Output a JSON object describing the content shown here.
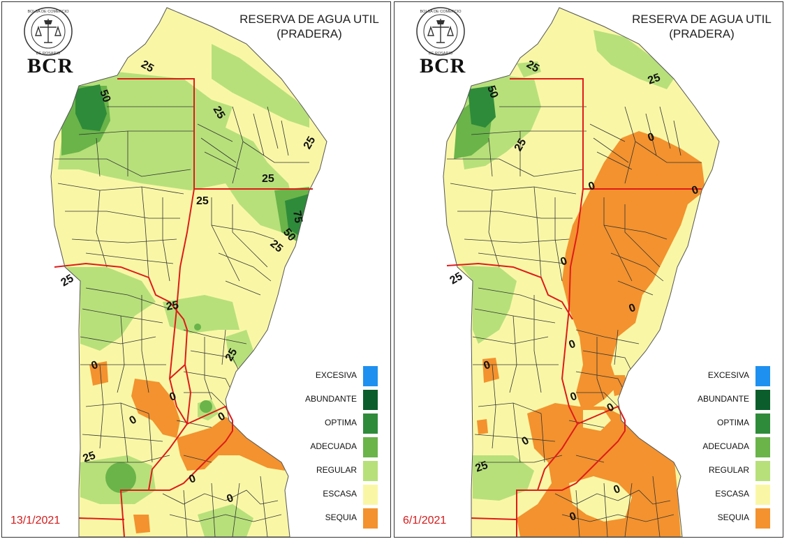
{
  "logo": {
    "org_seal_text": "BOLSA DE COMERCIO DE ROSARIO",
    "abbrev": "BCR"
  },
  "title": {
    "line1": "RESERVA DE AGUA UTIL",
    "line2": "(PRADERA)"
  },
  "legend": [
    {
      "label": "EXCESIVA",
      "color": "#1e90f0"
    },
    {
      "label": "ABUNDANTE",
      "color": "#0b5e2c"
    },
    {
      "label": "OPTIMA",
      "color": "#2e8b3a"
    },
    {
      "label": "ADECUADA",
      "color": "#6ab44a"
    },
    {
      "label": "REGULAR",
      "color": "#b7e07a"
    },
    {
      "label": "ESCASA",
      "color": "#f9f7a6"
    },
    {
      "label": "SEQUIA",
      "color": "#f3922e"
    }
  ],
  "maps": [
    {
      "date": "13/1/2021",
      "contours": [
        {
          "label": "25"
        },
        {
          "label": "50"
        },
        {
          "label": "25"
        },
        {
          "label": "25"
        },
        {
          "label": "25"
        },
        {
          "label": "25"
        },
        {
          "label": "75"
        },
        {
          "label": "50"
        },
        {
          "label": "25"
        },
        {
          "label": "25"
        },
        {
          "label": "25"
        },
        {
          "label": "25"
        },
        {
          "label": "0"
        },
        {
          "label": "0"
        },
        {
          "label": "0"
        },
        {
          "label": "0"
        },
        {
          "label": "25"
        },
        {
          "label": "0"
        },
        {
          "label": "0"
        }
      ]
    },
    {
      "date": "6/1/2021",
      "contours": [
        {
          "label": "25"
        },
        {
          "label": "50"
        },
        {
          "label": "25"
        },
        {
          "label": "25"
        },
        {
          "label": "0"
        },
        {
          "label": "0"
        },
        {
          "label": "0"
        },
        {
          "label": "0"
        },
        {
          "label": "25"
        },
        {
          "label": "0"
        },
        {
          "label": "0"
        },
        {
          "label": "0"
        },
        {
          "label": "0"
        },
        {
          "label": "0"
        },
        {
          "label": "0"
        },
        {
          "label": "25"
        },
        {
          "label": "0"
        },
        {
          "label": "0"
        }
      ]
    }
  ]
}
